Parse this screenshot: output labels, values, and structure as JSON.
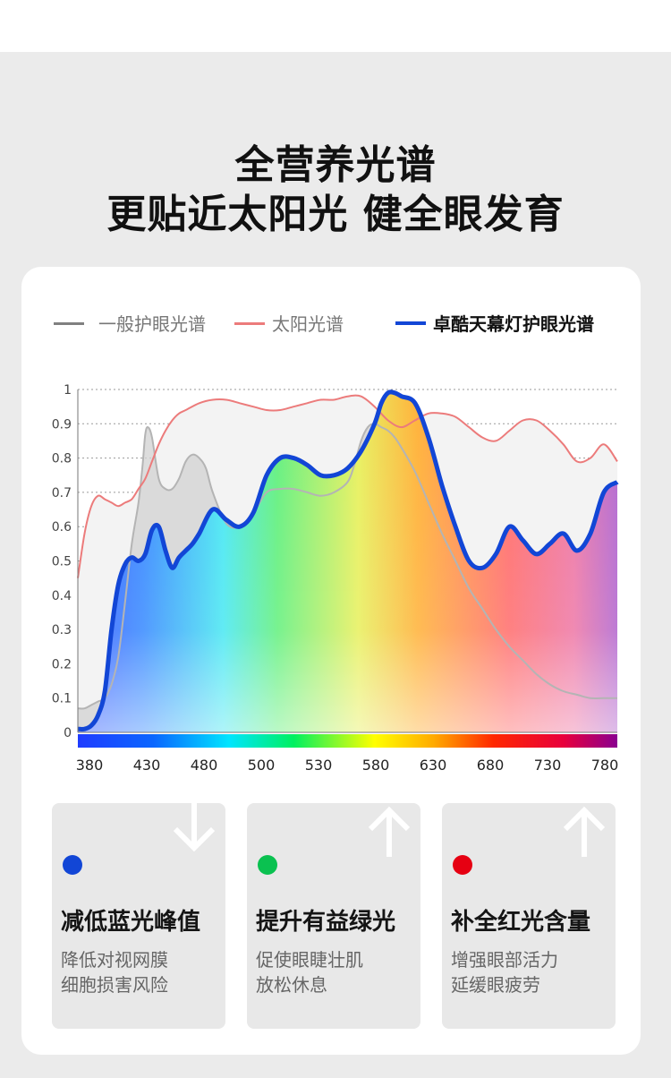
{
  "headline": {
    "line1": "全营养光谱",
    "line2": "更贴近太阳光 健全眼发育"
  },
  "legend": [
    {
      "label": "一般护眼光谱",
      "color": "#808080"
    },
    {
      "label": "太阳光谱",
      "color": "#ec7b7b"
    },
    {
      "label": "卓酷天幕灯护眼光谱",
      "color": "#1246d6"
    }
  ],
  "chart_data": {
    "type": "line",
    "xlim": [
      380,
      780
    ],
    "ylim": [
      0,
      1
    ],
    "x_ticks": [
      380,
      430,
      480,
      500,
      530,
      580,
      630,
      680,
      730,
      780
    ],
    "y_ticks": [
      0,
      0.1,
      0.2,
      0.3,
      0.4,
      0.5,
      0.6,
      0.7,
      0.8,
      0.9,
      1
    ],
    "grid": "horizontal dotted",
    "series": [
      {
        "name": "一般护眼光谱",
        "color": "#b4b4b4",
        "x": [
          380,
          385,
          390,
          395,
          400,
          405,
          410,
          415,
          420,
          425,
          428,
          430,
          432,
          435,
          440,
          445,
          450,
          455,
          460,
          465,
          470,
          475,
          480,
          490,
          500,
          510,
          520,
          530,
          540,
          550,
          560,
          570,
          580,
          585,
          590,
          595,
          600,
          605,
          610,
          615,
          620,
          630,
          640,
          650,
          660,
          670,
          680,
          690,
          700,
          710,
          720,
          730,
          740,
          750,
          760,
          770,
          780
        ],
        "y": [
          0.07,
          0.07,
          0.08,
          0.09,
          0.1,
          0.14,
          0.22,
          0.38,
          0.55,
          0.67,
          0.78,
          0.87,
          0.89,
          0.86,
          0.74,
          0.71,
          0.71,
          0.74,
          0.79,
          0.81,
          0.8,
          0.77,
          0.7,
          0.61,
          0.6,
          0.64,
          0.7,
          0.71,
          0.71,
          0.7,
          0.69,
          0.7,
          0.73,
          0.78,
          0.85,
          0.89,
          0.9,
          0.89,
          0.88,
          0.86,
          0.83,
          0.76,
          0.67,
          0.58,
          0.5,
          0.42,
          0.36,
          0.3,
          0.25,
          0.21,
          0.17,
          0.14,
          0.12,
          0.11,
          0.1,
          0.1,
          0.1
        ]
      },
      {
        "name": "太阳光谱",
        "color": "#ec7b7b",
        "x": [
          380,
          385,
          390,
          395,
          400,
          405,
          410,
          415,
          420,
          425,
          430,
          435,
          440,
          445,
          450,
          455,
          460,
          470,
          480,
          490,
          500,
          510,
          520,
          530,
          540,
          550,
          560,
          570,
          580,
          590,
          600,
          610,
          620,
          630,
          640,
          650,
          660,
          670,
          680,
          690,
          700,
          710,
          720,
          730,
          740,
          750,
          760,
          770,
          780
        ],
        "y": [
          0.45,
          0.58,
          0.66,
          0.69,
          0.68,
          0.67,
          0.66,
          0.67,
          0.68,
          0.71,
          0.74,
          0.79,
          0.84,
          0.88,
          0.91,
          0.93,
          0.94,
          0.96,
          0.97,
          0.97,
          0.96,
          0.95,
          0.94,
          0.94,
          0.95,
          0.96,
          0.97,
          0.97,
          0.98,
          0.98,
          0.95,
          0.91,
          0.89,
          0.91,
          0.93,
          0.93,
          0.92,
          0.89,
          0.86,
          0.85,
          0.88,
          0.91,
          0.91,
          0.88,
          0.84,
          0.79,
          0.8,
          0.84,
          0.79
        ],
        "fill": "#f3f3f3"
      },
      {
        "name": "卓酷天幕灯护眼光谱",
        "color": "#1246d6",
        "x": [
          380,
          385,
          390,
          395,
          400,
          405,
          410,
          415,
          420,
          425,
          430,
          435,
          440,
          445,
          450,
          455,
          460,
          465,
          470,
          480,
          490,
          500,
          510,
          520,
          530,
          540,
          550,
          560,
          570,
          580,
          590,
          600,
          605,
          610,
          615,
          620,
          630,
          640,
          650,
          660,
          670,
          680,
          690,
          700,
          710,
          720,
          730,
          740,
          750,
          760,
          770,
          780
        ],
        "y": [
          0.01,
          0.01,
          0.02,
          0.05,
          0.12,
          0.3,
          0.43,
          0.49,
          0.51,
          0.5,
          0.52,
          0.59,
          0.6,
          0.53,
          0.48,
          0.51,
          0.53,
          0.55,
          0.58,
          0.65,
          0.62,
          0.6,
          0.64,
          0.75,
          0.8,
          0.8,
          0.78,
          0.75,
          0.75,
          0.77,
          0.82,
          0.9,
          0.96,
          0.99,
          0.99,
          0.98,
          0.96,
          0.86,
          0.72,
          0.6,
          0.5,
          0.48,
          0.52,
          0.6,
          0.56,
          0.52,
          0.55,
          0.58,
          0.53,
          0.58,
          0.7,
          0.73
        ]
      }
    ]
  },
  "features": [
    {
      "title": "减低蓝光峰值",
      "line1": "降低对视网膜",
      "line2": "细胞损害风险",
      "color": "#1246d6"
    },
    {
      "title": "提升有益绿光",
      "line1": "促使眼睫壮肌",
      "line2": "放松休息",
      "color": "#0ac150"
    },
    {
      "title": "补全红光含量",
      "line1": "增强眼部活力",
      "line2": "延缓眼疲劳",
      "color": "#e60012"
    }
  ]
}
